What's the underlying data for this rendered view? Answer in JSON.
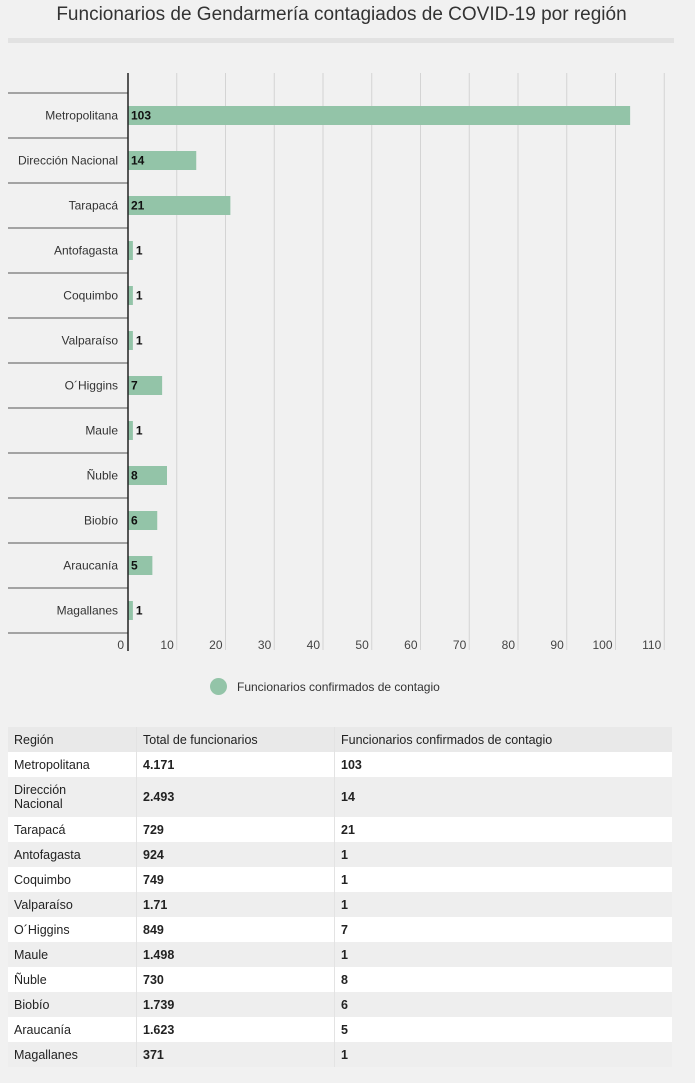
{
  "page": {
    "title": "Funcionarios de Gendarmería contagiados de COVID-19 por región"
  },
  "chart_data": {
    "type": "bar",
    "orientation": "horizontal",
    "categories": [
      "Metropolitana",
      "Dirección Nacional",
      "Tarapacá",
      "Antofagasta",
      "Coquimbo",
      "Valparaíso",
      "O´Higgins",
      "Maule",
      "Ñuble",
      "Biobío",
      "Araucanía",
      "Magallanes"
    ],
    "series": [
      {
        "name": "Funcionarios confirmados de contagio",
        "values": [
          103,
          14,
          21,
          1,
          1,
          1,
          7,
          1,
          8,
          6,
          5,
          1
        ],
        "color": "#93c4a8"
      }
    ],
    "xlim": [
      0,
      110
    ],
    "xticks": [
      0,
      10,
      20,
      30,
      40,
      50,
      60,
      70,
      80,
      90,
      100,
      110
    ],
    "grid": true,
    "legend_position": "bottom"
  },
  "table": {
    "headers": [
      "Región",
      "Total de funcionarios",
      "Funcionarios confirmados de contagio"
    ],
    "rows": [
      [
        "Metropolitana",
        "4.171",
        "103"
      ],
      [
        "Dirección\nNacional",
        "2.493",
        "14"
      ],
      [
        "Tarapacá",
        "729",
        "21"
      ],
      [
        "Antofagasta",
        "924",
        "1"
      ],
      [
        "Coquimbo",
        "749",
        "1"
      ],
      [
        "Valparaíso",
        "1.71",
        "1"
      ],
      [
        "O´Higgins",
        "849",
        "7"
      ],
      [
        "Maule",
        "1.498",
        "1"
      ],
      [
        "Ñuble",
        "730",
        "8"
      ],
      [
        "Biobío",
        "1.739",
        "6"
      ],
      [
        "Araucanía",
        "1.623",
        "5"
      ],
      [
        "Magallanes",
        "371",
        "1"
      ]
    ]
  }
}
